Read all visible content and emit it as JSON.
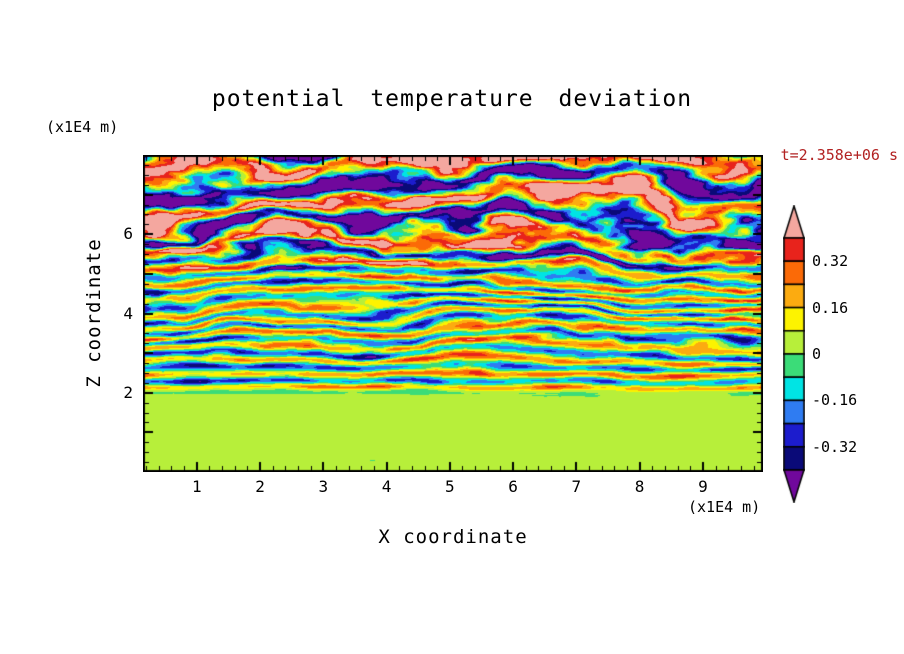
{
  "title": "potential temperature deviation",
  "timestamp": "t=2.358e+06 s",
  "axes": {
    "x_title": "X coordinate",
    "x_unit": "(x1E4 m)",
    "y_title": "Z coordinate",
    "y_unit": "(x1E4 m)"
  },
  "colors": {
    "timestamp_text": "#b22222",
    "frame": "#000000",
    "background": "#ffffff"
  },
  "chart_data": {
    "type": "heatmap",
    "title": "potential temperature deviation",
    "xlabel": "X coordinate",
    "ylabel": "Z coordinate",
    "x_unit": "(x1E4 m)",
    "y_unit": "(x1E4 m)",
    "time_annotation": "t=2.358e+06 s",
    "x_range": [
      0.15,
      9.95
    ],
    "z_range": [
      0,
      8
    ],
    "x_ticks": [
      1,
      2,
      3,
      4,
      5,
      6,
      7,
      8,
      9
    ],
    "z_ticks": [
      2,
      4,
      6
    ],
    "grid": false,
    "legend_position": "right-colorbar",
    "colorbar": {
      "tick_labels": [
        "0.32",
        "0.16",
        "0",
        "-0.16",
        "-0.32"
      ],
      "levels_top_to_bottom": [
        0.4,
        0.32,
        0.24,
        0.16,
        0.08,
        0,
        -0.08,
        -0.16,
        -0.24,
        -0.32,
        -0.4
      ],
      "segment_colors_top_to_bottom": [
        "#e8231c",
        "#fb6a07",
        "#fcab10",
        "#fdf300",
        "#b7ef3a",
        "#3bdc78",
        "#00e4e4",
        "#2f7cf2",
        "#1c1ccd",
        "#0a0a78"
      ],
      "over_color": "#f4a79f",
      "under_color": "#70089c"
    },
    "field_structure": {
      "z_0_to_2": "smooth weak positive deviation (green-yellow, 0 to 0.08) with sparse weak negative green patches",
      "z_2_to_5": "fine-scale turbulent horizontal wave layers of moderate amplitude: cyan/green background with thin yellow, orange, red, blue and navy streaks",
      "z_5_to_8": "large-amplitude broad undulating wave bands saturating the color scale: thick salmon (>0.4) and purple (<-0.4) layers edged by red/orange and navy/cyan fringes"
    }
  }
}
